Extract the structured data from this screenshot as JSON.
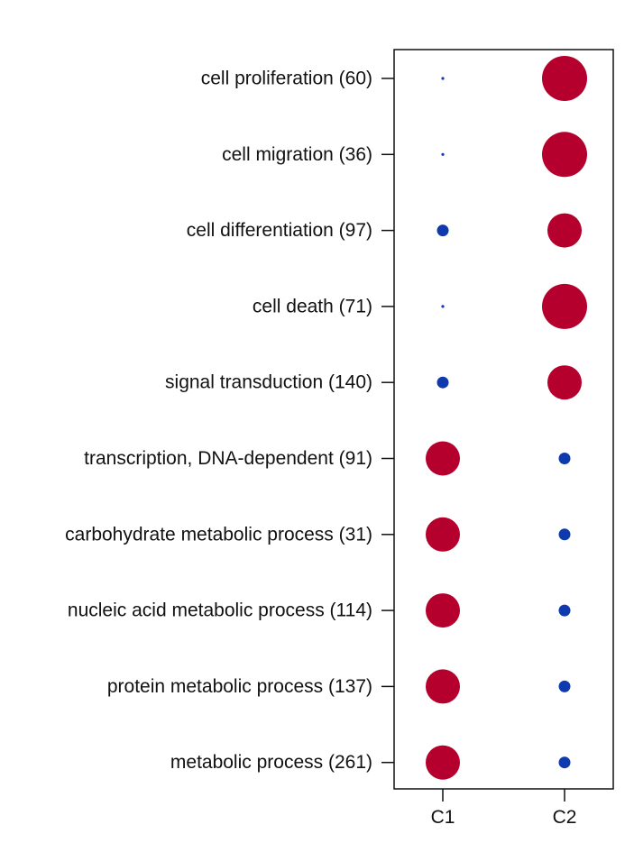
{
  "chart_data": {
    "type": "scatter",
    "title": "",
    "xlabel": "",
    "ylabel": "",
    "columns": [
      "C1",
      "C2"
    ],
    "rows": [
      "cell proliferation (60)",
      "cell migration (36)",
      "cell differentiation (97)",
      "cell death (71)",
      "signal transduction (140)",
      "transcription, DNA-dependent (91)",
      "carbohydrate metabolic process (31)",
      "nucleic acid metabolic process (114)",
      "protein metabolic process (137)",
      "metabolic process (261)"
    ],
    "series": [
      {
        "column": "C1",
        "size": [
          0.06,
          0.06,
          0.26,
          0.06,
          0.26,
          0.76,
          0.76,
          0.76,
          0.76,
          0.76
        ],
        "direction": [
          "down",
          "down",
          "down",
          "down",
          "down",
          "up",
          "up",
          "up",
          "up",
          "up"
        ]
      },
      {
        "column": "C2",
        "size": [
          1.0,
          1.0,
          0.76,
          1.0,
          0.76,
          0.26,
          0.26,
          0.26,
          0.26,
          0.26
        ],
        "direction": [
          "up",
          "up",
          "up",
          "up",
          "up",
          "down",
          "down",
          "down",
          "down",
          "down"
        ]
      }
    ],
    "colors": {
      "up": "#b5002d",
      "down": "#0f3aad"
    },
    "grid": false,
    "legend": "none"
  }
}
